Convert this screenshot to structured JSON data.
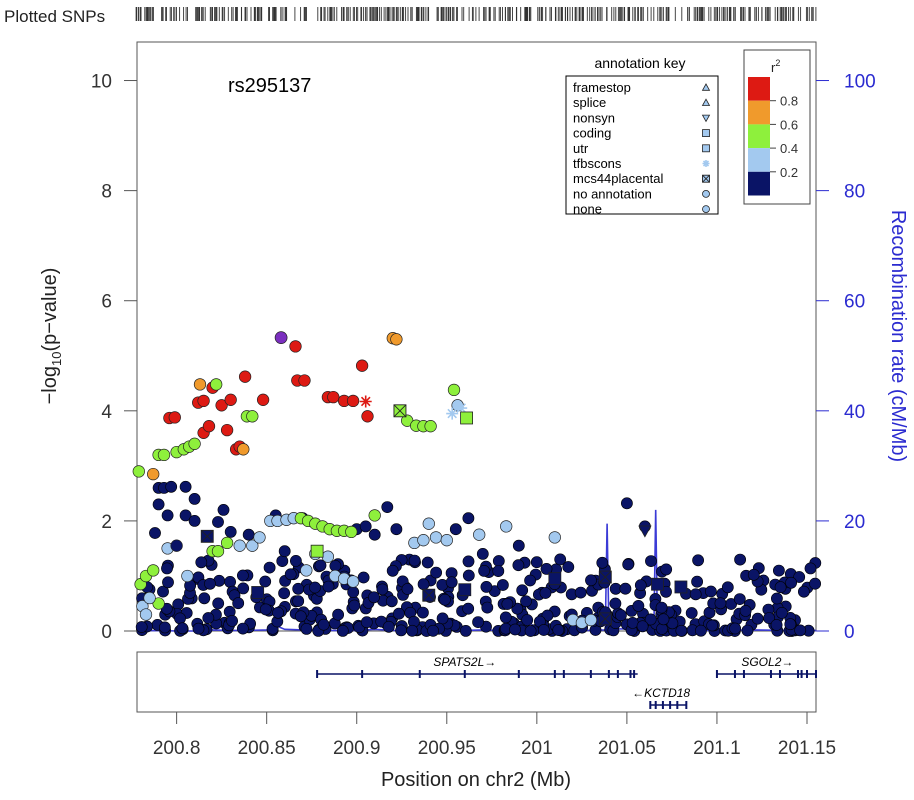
{
  "chart_data": {
    "type": "scatter",
    "plotted_snps_label": "Plotted SNPs",
    "title": "rs295137",
    "xlabel": "Position on chr2 (Mb)",
    "ylabel_left": "−log10(p−value)",
    "ylabel_right": "Recombination rate (cM/Mb)",
    "xlim": [
      200.778,
      201.155
    ],
    "ylim_left": [
      0,
      10.7
    ],
    "ylim_right": [
      0,
      107
    ],
    "x_ticks": [
      {
        "value": 200.8,
        "label": "200.8"
      },
      {
        "value": 200.85,
        "label": "200.85"
      },
      {
        "value": 200.9,
        "label": "200.9"
      },
      {
        "value": 200.95,
        "label": "200.95"
      },
      {
        "value": 201.0,
        "label": "201"
      },
      {
        "value": 201.05,
        "label": "201.05"
      },
      {
        "value": 201.1,
        "label": "201.1"
      },
      {
        "value": 201.15,
        "label": "201.15"
      }
    ],
    "y_ticks_left": [
      {
        "value": 0,
        "label": "0"
      },
      {
        "value": 2,
        "label": "2"
      },
      {
        "value": 4,
        "label": "4"
      },
      {
        "value": 6,
        "label": "6"
      },
      {
        "value": 8,
        "label": "8"
      },
      {
        "value": 10,
        "label": "10"
      }
    ],
    "y_ticks_right": [
      {
        "value": 0,
        "label": "0"
      },
      {
        "value": 20,
        "label": "20"
      },
      {
        "value": 40,
        "label": "40"
      },
      {
        "value": 60,
        "label": "60"
      },
      {
        "value": 80,
        "label": "80"
      },
      {
        "value": 100,
        "label": "100"
      }
    ],
    "r2_legend": {
      "title": "r",
      "title_sup": "2",
      "bins": [
        {
          "label": "0.8",
          "color": "#dd1a13"
        },
        {
          "label": "0.6",
          "color": "#f09a2c"
        },
        {
          "label": "0.4",
          "color": "#8ef03c"
        },
        {
          "label": "0.2",
          "color": "#a3c9ef"
        },
        {
          "label": "",
          "color": "#0a1466"
        }
      ]
    },
    "annotation_key": {
      "title": "annotation key",
      "items": [
        {
          "label": "framestop",
          "symbol": "triangle-up"
        },
        {
          "label": "splice",
          "symbol": "triangle-up"
        },
        {
          "label": "nonsyn",
          "symbol": "triangle-down"
        },
        {
          "label": "coding",
          "symbol": "square"
        },
        {
          "label": "utr",
          "symbol": "square"
        },
        {
          "label": "tfbscons",
          "symbol": "star"
        },
        {
          "label": "mcs44placental",
          "symbol": "boxed-x"
        },
        {
          "label": "no annotation",
          "symbol": "circle"
        },
        {
          "label": "none",
          "symbol": "circle"
        }
      ]
    },
    "colors": {
      "red": "#dd1a13",
      "orange": "#f09a2c",
      "green": "#8ef03c",
      "lightblue": "#a3c9ef",
      "navy": "#0a1466",
      "purple": "#7b2fbf",
      "recomb": "#3b3bd6",
      "axis_right": "#2b2bd0"
    },
    "index_snp": {
      "x": 200.858,
      "y": 5.33
    },
    "highld_points": [
      {
        "x": 200.779,
        "y": 2.9,
        "c": "green"
      },
      {
        "x": 200.787,
        "y": 2.85,
        "c": "orange"
      },
      {
        "x": 200.79,
        "y": 3.2,
        "c": "green"
      },
      {
        "x": 200.793,
        "y": 3.2,
        "c": "green"
      },
      {
        "x": 200.796,
        "y": 3.87,
        "c": "red"
      },
      {
        "x": 200.799,
        "y": 3.88,
        "c": "red"
      },
      {
        "x": 200.8,
        "y": 3.25,
        "c": "green"
      },
      {
        "x": 200.804,
        "y": 3.3,
        "c": "green"
      },
      {
        "x": 200.807,
        "y": 3.35,
        "c": "green"
      },
      {
        "x": 200.81,
        "y": 3.4,
        "c": "green"
      },
      {
        "x": 200.812,
        "y": 4.15,
        "c": "red"
      },
      {
        "x": 200.813,
        "y": 4.48,
        "c": "orange"
      },
      {
        "x": 200.815,
        "y": 3.6,
        "c": "red"
      },
      {
        "x": 200.815,
        "y": 4.18,
        "c": "red"
      },
      {
        "x": 200.818,
        "y": 3.72,
        "c": "red"
      },
      {
        "x": 200.82,
        "y": 4.42,
        "c": "red"
      },
      {
        "x": 200.822,
        "y": 4.48,
        "c": "green"
      },
      {
        "x": 200.825,
        "y": 4.1,
        "c": "red"
      },
      {
        "x": 200.828,
        "y": 3.65,
        "c": "red"
      },
      {
        "x": 200.83,
        "y": 4.2,
        "c": "red"
      },
      {
        "x": 200.833,
        "y": 3.3,
        "c": "red"
      },
      {
        "x": 200.835,
        "y": 3.35,
        "c": "red"
      },
      {
        "x": 200.837,
        "y": 3.3,
        "c": "orange"
      },
      {
        "x": 200.838,
        "y": 4.62,
        "c": "red"
      },
      {
        "x": 200.839,
        "y": 3.9,
        "c": "green"
      },
      {
        "x": 200.842,
        "y": 3.9,
        "c": "green"
      },
      {
        "x": 200.848,
        "y": 4.2,
        "c": "red"
      },
      {
        "x": 200.866,
        "y": 5.17,
        "c": "red"
      },
      {
        "x": 200.867,
        "y": 4.55,
        "c": "red"
      },
      {
        "x": 200.871,
        "y": 4.55,
        "c": "red"
      },
      {
        "x": 200.884,
        "y": 4.25,
        "c": "red"
      },
      {
        "x": 200.887,
        "y": 4.25,
        "c": "red"
      },
      {
        "x": 200.893,
        "y": 4.18,
        "c": "red"
      },
      {
        "x": 200.898,
        "y": 4.18,
        "c": "red"
      },
      {
        "x": 200.903,
        "y": 4.82,
        "c": "red"
      },
      {
        "x": 200.906,
        "y": 3.9,
        "c": "red"
      },
      {
        "x": 200.92,
        "y": 5.32,
        "c": "orange"
      },
      {
        "x": 200.922,
        "y": 5.3,
        "c": "orange"
      },
      {
        "x": 200.928,
        "y": 3.82,
        "c": "green"
      },
      {
        "x": 200.933,
        "y": 3.73,
        "c": "green"
      },
      {
        "x": 200.937,
        "y": 3.72,
        "c": "green"
      },
      {
        "x": 200.941,
        "y": 3.72,
        "c": "green"
      },
      {
        "x": 200.954,
        "y": 4.38,
        "c": "green"
      },
      {
        "x": 200.956,
        "y": 4.1,
        "c": "lightblue"
      },
      {
        "x": 200.795,
        "y": 1.5,
        "c": "lightblue"
      },
      {
        "x": 200.8,
        "y": 1.55,
        "c": "navy"
      },
      {
        "x": 200.806,
        "y": 1.0,
        "c": "lightblue"
      },
      {
        "x": 200.82,
        "y": 1.45,
        "c": "green"
      },
      {
        "x": 200.823,
        "y": 1.45,
        "c": "green"
      },
      {
        "x": 200.828,
        "y": 1.6,
        "c": "green"
      },
      {
        "x": 200.835,
        "y": 1.55,
        "c": "lightblue"
      },
      {
        "x": 200.842,
        "y": 1.55,
        "c": "lightblue"
      },
      {
        "x": 200.846,
        "y": 1.7,
        "c": "lightblue"
      },
      {
        "x": 200.852,
        "y": 2.0,
        "c": "lightblue"
      },
      {
        "x": 200.856,
        "y": 2.0,
        "c": "lightblue"
      },
      {
        "x": 200.861,
        "y": 2.02,
        "c": "lightblue"
      },
      {
        "x": 200.865,
        "y": 2.05,
        "c": "lightblue"
      },
      {
        "x": 200.869,
        "y": 2.05,
        "c": "green"
      },
      {
        "x": 200.873,
        "y": 2.0,
        "c": "green"
      },
      {
        "x": 200.877,
        "y": 1.95,
        "c": "green"
      },
      {
        "x": 200.881,
        "y": 1.9,
        "c": "green"
      },
      {
        "x": 200.885,
        "y": 1.85,
        "c": "green"
      },
      {
        "x": 200.889,
        "y": 1.82,
        "c": "green"
      },
      {
        "x": 200.893,
        "y": 1.82,
        "c": "green"
      },
      {
        "x": 200.897,
        "y": 1.8,
        "c": "green"
      },
      {
        "x": 200.91,
        "y": 2.1,
        "c": "green"
      },
      {
        "x": 200.877,
        "y": 1.4,
        "c": "lightblue"
      },
      {
        "x": 200.884,
        "y": 1.35,
        "c": "lightblue"
      },
      {
        "x": 200.888,
        "y": 1.0,
        "c": "lightblue"
      },
      {
        "x": 200.893,
        "y": 0.95,
        "c": "lightblue"
      },
      {
        "x": 200.898,
        "y": 0.9,
        "c": "lightblue"
      },
      {
        "x": 200.872,
        "y": 1.1,
        "c": "lightblue"
      },
      {
        "x": 200.932,
        "y": 1.6,
        "c": "lightblue"
      },
      {
        "x": 200.937,
        "y": 1.65,
        "c": "lightblue"
      },
      {
        "x": 200.94,
        "y": 1.95,
        "c": "lightblue"
      },
      {
        "x": 200.944,
        "y": 1.7,
        "c": "lightblue"
      },
      {
        "x": 200.95,
        "y": 1.65,
        "c": "lightblue"
      },
      {
        "x": 200.968,
        "y": 1.75,
        "c": "lightblue"
      },
      {
        "x": 200.983,
        "y": 1.9,
        "c": "lightblue"
      },
      {
        "x": 201.01,
        "y": 1.7,
        "c": "lightblue"
      },
      {
        "x": 200.78,
        "y": 0.85,
        "c": "green"
      },
      {
        "x": 200.783,
        "y": 1.0,
        "c": "green"
      },
      {
        "x": 200.787,
        "y": 1.1,
        "c": "green"
      },
      {
        "x": 200.79,
        "y": 0.5,
        "c": "green"
      },
      {
        "x": 200.781,
        "y": 0.45,
        "c": "lightblue"
      },
      {
        "x": 200.785,
        "y": 0.6,
        "c": "lightblue"
      },
      {
        "x": 200.783,
        "y": 0.3,
        "c": "lightblue"
      },
      {
        "x": 201.02,
        "y": 0.2,
        "c": "lightblue"
      },
      {
        "x": 201.025,
        "y": 0.15,
        "c": "lightblue"
      },
      {
        "x": 201.03,
        "y": 0.2,
        "c": "lightblue"
      }
    ],
    "annotated_points": [
      {
        "x": 200.905,
        "y": 4.17,
        "symbol": "star",
        "c": "red"
      },
      {
        "x": 200.924,
        "y": 4.0,
        "symbol": "boxed-x",
        "c": "green"
      },
      {
        "x": 200.953,
        "y": 3.95,
        "symbol": "star",
        "c": "lightblue"
      },
      {
        "x": 200.958,
        "y": 4.05,
        "symbol": "star",
        "c": "lightblue"
      },
      {
        "x": 200.961,
        "y": 3.87,
        "symbol": "square",
        "c": "green"
      },
      {
        "x": 200.878,
        "y": 1.45,
        "symbol": "square",
        "c": "green"
      },
      {
        "x": 200.817,
        "y": 1.72,
        "symbol": "boxed-x",
        "c": "navy"
      },
      {
        "x": 200.845,
        "y": 0.7,
        "symbol": "square",
        "c": "navy"
      },
      {
        "x": 200.94,
        "y": 0.65,
        "symbol": "boxed-x",
        "c": "navy"
      },
      {
        "x": 200.96,
        "y": 0.75,
        "symbol": "square",
        "c": "navy"
      },
      {
        "x": 201.01,
        "y": 0.95,
        "symbol": "square",
        "c": "navy"
      },
      {
        "x": 201.038,
        "y": 0.98,
        "symbol": "boxed-x",
        "c": "navy"
      },
      {
        "x": 201.038,
        "y": 0.22,
        "symbol": "boxed-x",
        "c": "navy"
      },
      {
        "x": 201.06,
        "y": 1.82,
        "symbol": "triangle-down",
        "c": "navy"
      },
      {
        "x": 201.067,
        "y": 0.85,
        "symbol": "square",
        "c": "navy"
      },
      {
        "x": 201.08,
        "y": 0.8,
        "symbol": "square",
        "c": "navy"
      }
    ],
    "navy_scatter": {
      "clusters": [
        {
          "x0": 200.779,
          "x1": 200.83,
          "n": 50
        },
        {
          "x0": 200.83,
          "x1": 200.905,
          "n": 80
        },
        {
          "x0": 200.905,
          "x1": 200.98,
          "n": 80
        },
        {
          "x0": 200.98,
          "x1": 201.04,
          "n": 75
        },
        {
          "x0": 201.04,
          "x1": 201.1,
          "n": 70
        },
        {
          "x0": 201.1,
          "x1": 201.155,
          "n": 60
        }
      ],
      "ymax_hint": 1.3,
      "notable": [
        {
          "x": 200.79,
          "y": 2.6
        },
        {
          "x": 200.793,
          "y": 2.6
        },
        {
          "x": 200.797,
          "y": 2.62
        },
        {
          "x": 200.805,
          "y": 2.62
        },
        {
          "x": 200.81,
          "y": 2.4
        },
        {
          "x": 200.79,
          "y": 2.3
        },
        {
          "x": 200.795,
          "y": 2.1
        },
        {
          "x": 200.805,
          "y": 2.1
        },
        {
          "x": 200.81,
          "y": 2.0
        },
        {
          "x": 200.823,
          "y": 1.98
        },
        {
          "x": 200.826,
          "y": 2.2
        },
        {
          "x": 200.83,
          "y": 1.8
        },
        {
          "x": 200.855,
          "y": 2.1
        },
        {
          "x": 200.87,
          "y": 2.05
        },
        {
          "x": 200.9,
          "y": 1.85
        },
        {
          "x": 200.905,
          "y": 1.9
        },
        {
          "x": 200.91,
          "y": 1.75
        },
        {
          "x": 200.917,
          "y": 2.25
        },
        {
          "x": 200.922,
          "y": 1.85
        },
        {
          "x": 200.955,
          "y": 1.85
        },
        {
          "x": 200.962,
          "y": 2.05
        },
        {
          "x": 201.05,
          "y": 2.32
        },
        {
          "x": 201.06,
          "y": 1.9
        },
        {
          "x": 200.788,
          "y": 1.78
        },
        {
          "x": 200.84,
          "y": 1.75
        },
        {
          "x": 200.86,
          "y": 1.45
        },
        {
          "x": 200.97,
          "y": 1.4
        },
        {
          "x": 200.99,
          "y": 1.55
        },
        {
          "x": 201.0,
          "y": 1.25
        },
        {
          "x": 201.013,
          "y": 1.3
        }
      ]
    },
    "recombination": [
      [
        200.778,
        0.0
      ],
      [
        200.79,
        0.1
      ],
      [
        200.8,
        0.0
      ],
      [
        200.81,
        0.0
      ],
      [
        200.82,
        0.2
      ],
      [
        200.83,
        0.1
      ],
      [
        200.84,
        0.1
      ],
      [
        200.85,
        0.2
      ],
      [
        200.855,
        1.0
      ],
      [
        200.86,
        0.3
      ],
      [
        200.87,
        0.2
      ],
      [
        200.88,
        0.1
      ],
      [
        200.89,
        0.1
      ],
      [
        200.9,
        0.1
      ],
      [
        200.91,
        0.3
      ],
      [
        200.92,
        0.1
      ],
      [
        200.93,
        0.1
      ],
      [
        200.94,
        0.2
      ],
      [
        200.95,
        0.8
      ],
      [
        200.955,
        0.1
      ],
      [
        200.96,
        0.1
      ],
      [
        200.97,
        0.2
      ],
      [
        200.98,
        0.1
      ],
      [
        200.99,
        0.1
      ],
      [
        200.995,
        2.0
      ],
      [
        201.0,
        0.1
      ],
      [
        201.01,
        0.2
      ],
      [
        201.02,
        0.1
      ],
      [
        201.03,
        0.1
      ],
      [
        201.038,
        0.2
      ],
      [
        201.039,
        19.5
      ],
      [
        201.04,
        0.5
      ],
      [
        201.045,
        0.4
      ],
      [
        201.06,
        0.3
      ],
      [
        201.065,
        0.6
      ],
      [
        201.066,
        22.0
      ],
      [
        201.067,
        0.5
      ],
      [
        201.07,
        0.2
      ],
      [
        201.08,
        0.1
      ],
      [
        201.1,
        0.1
      ],
      [
        201.12,
        0.2
      ],
      [
        201.14,
        0.1
      ],
      [
        201.155,
        0.1
      ]
    ],
    "genes": [
      {
        "name": "SPATS2L→",
        "start": 200.878,
        "end": 201.056,
        "row": 0,
        "label_x": 200.96,
        "exons": [
          200.878,
          200.903,
          200.935,
          200.96,
          200.99,
          201.01,
          201.015,
          201.03,
          201.04,
          201.045,
          201.052,
          201.054
        ]
      },
      {
        "name": "SGOL2→",
        "start": 201.1,
        "end": 201.155,
        "row": 0,
        "label_x": 201.128,
        "exons": [
          201.1,
          201.11,
          201.115,
          201.13,
          201.135,
          201.145,
          201.147,
          201.15,
          201.155
        ]
      },
      {
        "name": "←KCTD18",
        "start": 201.063,
        "end": 201.083,
        "row": 1,
        "label_x": 201.069,
        "exons": [
          201.063,
          201.066,
          201.07,
          201.074,
          201.078,
          201.083
        ]
      }
    ]
  }
}
